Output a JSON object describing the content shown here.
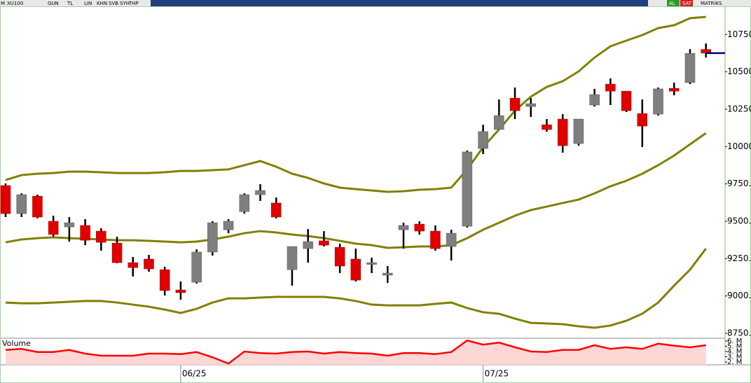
{
  "toolbar": {
    "menu": "M",
    "symbol": "XU100",
    "buttons": [
      "GUN",
      "TL",
      "LIN",
      "KHN",
      "SVB",
      "SYH",
      "THP"
    ],
    "actions": [
      "AL",
      "SAT"
    ],
    "brand": "MATRiKS"
  },
  "chart_data": [
    {
      "type": "candlestick",
      "categories": [
        null,
        null,
        null,
        null,
        null,
        null,
        null,
        null,
        null,
        null,
        null,
        "06/25",
        null,
        null,
        null,
        null,
        null,
        null,
        null,
        null,
        null,
        null,
        null,
        null,
        null,
        null,
        null,
        null,
        null,
        null,
        "07/25",
        null,
        null,
        null,
        null,
        null,
        null,
        null,
        null,
        null,
        null,
        null,
        null,
        null,
        null
      ],
      "open": [
        9739,
        9551,
        9668,
        9500,
        9462,
        9472,
        9434,
        9354,
        9223,
        9247,
        9176,
        9040,
        9092,
        9294,
        9443,
        9565,
        9678,
        9622,
        9176,
        9317,
        9369,
        9326,
        9247,
        9214,
        9139,
        9443,
        9481,
        9434,
        9331,
        9467,
        9987,
        10114,
        10324,
        10268,
        10146,
        10184,
        10020,
        10278,
        10418,
        10371,
        10221,
        10217,
        10390,
        10428,
        10650
      ],
      "high": [
        9753,
        9687,
        9678,
        9537,
        9528,
        9514,
        9453,
        9397,
        9261,
        9275,
        9195,
        9097,
        9312,
        9500,
        9514,
        9687,
        9748,
        9659,
        9331,
        9448,
        9434,
        9350,
        9317,
        9256,
        9200,
        9490,
        9500,
        9472,
        9443,
        9973,
        10146,
        10315,
        10395,
        10324,
        10184,
        10217,
        10184,
        10386,
        10456,
        10371,
        10315,
        10395,
        10428,
        10652,
        10690
      ],
      "low": [
        9528,
        9528,
        9519,
        9397,
        9364,
        9340,
        9303,
        9219,
        9130,
        9162,
        9003,
        8975,
        9083,
        9270,
        9420,
        9551,
        9636,
        9519,
        9069,
        9223,
        9331,
        9153,
        9097,
        9153,
        9087,
        9317,
        9411,
        9303,
        9237,
        9458,
        9950,
        10114,
        10184,
        10198,
        10100,
        9959,
        10006,
        10268,
        10278,
        10231,
        9997,
        10207,
        10343,
        10418,
        10596
      ],
      "close": [
        9551,
        9678,
        9528,
        9411,
        9490,
        9373,
        9359,
        9223,
        9190,
        9181,
        9036,
        9022,
        9294,
        9490,
        9500,
        9678,
        9706,
        9528,
        9331,
        9364,
        9340,
        9200,
        9106,
        9223,
        9153,
        9472,
        9434,
        9317,
        9420,
        9964,
        10100,
        10207,
        10240,
        10287,
        10114,
        10006,
        10184,
        10348,
        10371,
        10240,
        10137,
        10386,
        10371,
        10624,
        10625
      ],
      "up_color": "#7f7f7f",
      "down_color": "#e00000",
      "wick_color": "#000000",
      "last_price_color": "#000080",
      "overlays": [
        {
          "color": "#808000",
          "values": [
            9776,
            9809,
            9818,
            9823,
            9832,
            9832,
            9828,
            9823,
            9823,
            9823,
            9828,
            9837,
            9837,
            9842,
            9847,
            9875,
            9903,
            9865,
            9818,
            9790,
            9753,
            9725,
            9715,
            9706,
            9697,
            9701,
            9711,
            9715,
            9725,
            9847,
            9996,
            10114,
            10240,
            10334,
            10399,
            10437,
            10503,
            10596,
            10671,
            10709,
            10746,
            10793,
            10812,
            10859,
            10868
          ]
        },
        {
          "color": "#808000",
          "values": [
            9359,
            9378,
            9387,
            9392,
            9387,
            9383,
            9378,
            9373,
            9373,
            9369,
            9364,
            9359,
            9364,
            9378,
            9397,
            9420,
            9434,
            9425,
            9411,
            9401,
            9387,
            9369,
            9350,
            9340,
            9322,
            9326,
            9331,
            9331,
            9340,
            9387,
            9443,
            9490,
            9537,
            9575,
            9598,
            9622,
            9645,
            9687,
            9734,
            9771,
            9818,
            9875,
            9940,
            10015,
            10090
          ]
        },
        {
          "color": "#808000",
          "values": [
            8956,
            8951,
            8951,
            8956,
            8961,
            8966,
            8966,
            8956,
            8942,
            8928,
            8909,
            8886,
            8914,
            8956,
            8984,
            8984,
            8989,
            8994,
            8994,
            8994,
            8994,
            8984,
            8966,
            8942,
            8937,
            8937,
            8937,
            8947,
            8956,
            8919,
            8891,
            8881,
            8848,
            8820,
            8816,
            8811,
            8797,
            8787,
            8802,
            8834,
            8881,
            8956,
            9069,
            9176,
            9317
          ]
        }
      ],
      "ylim": [
        8722,
        10934
      ],
      "yticks": [
        {
          "value": 8750,
          "label": "8750."
        },
        {
          "value": 9000,
          "label": "9000."
        },
        {
          "value": 9250,
          "label": "9250."
        },
        {
          "value": 9500,
          "label": "9500."
        },
        {
          "value": 9750,
          "label": "9750."
        },
        {
          "value": 10000,
          "label": "10000."
        },
        {
          "value": 10250,
          "label": "10250."
        },
        {
          "value": 10500,
          "label": "10500."
        },
        {
          "value": 10750,
          "label": "10750."
        }
      ]
    },
    {
      "type": "area",
      "title": "Volume",
      "values": [
        4.3,
        4.5,
        3.9,
        3.9,
        4.3,
        3.6,
        3.2,
        3.2,
        3.2,
        3.6,
        3.6,
        3.5,
        3.9,
        2.9,
        1.7,
        4.0,
        3.7,
        3.6,
        3.9,
        4.0,
        3.6,
        3.9,
        3.7,
        3.6,
        3.2,
        3.7,
        3.7,
        3.5,
        3.9,
        6.1,
        5.3,
        5.7,
        4.8,
        4.0,
        3.9,
        4.3,
        4.3,
        5.2,
        4.5,
        4.8,
        4.5,
        5.5,
        5.1,
        4.8,
        5.2
      ],
      "color": "#ff0000",
      "fill": "#ffd6d6",
      "ylim": [
        1.47,
        6.4
      ],
      "yticks": [
        {
          "value": 2,
          "label": "2. M"
        },
        {
          "value": 3,
          "label": "3. M"
        },
        {
          "value": 4,
          "label": "4. M"
        },
        {
          "value": 5,
          "label": "5. M"
        },
        {
          "value": 6,
          "label": "6. M"
        }
      ]
    }
  ]
}
